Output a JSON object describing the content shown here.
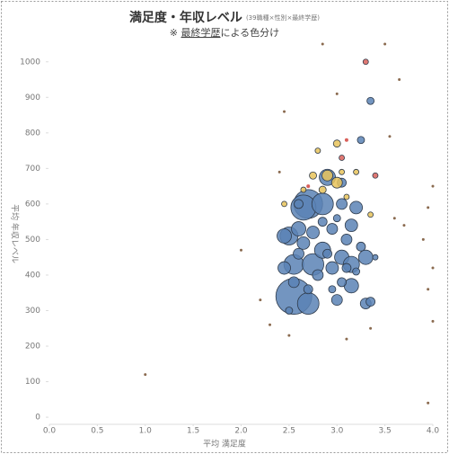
{
  "chart_data": {
    "type": "scatter",
    "title": "満足度・年収レベル",
    "title_note": "(39職種×性別×最終学歴)",
    "subtitle_prefix": "※ ",
    "subtitle_link": "最終学歴",
    "subtitle_suffix": "による色分け",
    "xlabel": "平均 満足度",
    "ylabel": "平均 年収レベル",
    "xlim": [
      0,
      4
    ],
    "ylim": [
      -20,
      1050
    ],
    "xticks": [
      {
        "value": 0,
        "label": "0.0"
      },
      0.5,
      {
        "value": 1,
        "label": "1.0"
      },
      1.5,
      {
        "value": 2,
        "label": "2.0"
      },
      2.5,
      {
        "value": 3,
        "label": "3.0"
      },
      3.5,
      {
        "value": 4,
        "label": "4.0"
      }
    ],
    "yticks": [
      0,
      100,
      200,
      300,
      400,
      500,
      600,
      700,
      800,
      900,
      1000
    ],
    "series": [
      {
        "color": "#5b83b5",
        "x": [
          2.55,
          2.7,
          2.7,
          2.65,
          2.85,
          2.9,
          2.5,
          2.55,
          2.75,
          2.85,
          3.05,
          3.15,
          3.3,
          3.15,
          3.3,
          3.35,
          3.15,
          3.2,
          3.05,
          2.95,
          3.0,
          2.95,
          2.6,
          2.45,
          2.45,
          2.65,
          2.75,
          2.8,
          2.6,
          3.1,
          3.25,
          3.35,
          3.25,
          3.05,
          2.6,
          2.55,
          2.5,
          2.95,
          3.05,
          2.85,
          3.1,
          2.9,
          3.2,
          2.7,
          3.0,
          3.4
        ],
        "values": [
          340,
          320,
          600,
          590,
          600,
          675,
          510,
          430,
          430,
          470,
          450,
          430,
          450,
          370,
          320,
          325,
          540,
          590,
          600,
          530,
          330,
          420,
          530,
          420,
          510,
          490,
          520,
          400,
          460,
          500,
          480,
          890,
          780,
          660,
          600,
          380,
          300,
          360,
          380,
          550,
          420,
          460,
          410,
          360,
          560,
          450
        ],
        "sizes": [
          20,
          12,
          16,
          14,
          12,
          9,
          10,
          11,
          12,
          9,
          8,
          9,
          8,
          8,
          6,
          5,
          7,
          7,
          6,
          6,
          6,
          7,
          8,
          7,
          8,
          7,
          7,
          6,
          6,
          6,
          5,
          4,
          4,
          5,
          5,
          6,
          4,
          4,
          5,
          5,
          5,
          5,
          4,
          5,
          4,
          3
        ]
      },
      {
        "color": "#e8c35a",
        "x": [
          2.9,
          3.0,
          3.0,
          2.75,
          2.85,
          3.05,
          2.45,
          3.35,
          2.8,
          3.1,
          2.65,
          3.2
        ],
        "values": [
          680,
          660,
          770,
          680,
          640,
          690,
          600,
          570,
          750,
          620,
          640,
          690
        ],
        "sizes": [
          6,
          6,
          4,
          4,
          4,
          3,
          3,
          3,
          3,
          3,
          3,
          3
        ]
      },
      {
        "color": "#d9605a",
        "x": [
          3.3,
          3.4,
          3.05,
          2.7,
          3.1
        ],
        "values": [
          1000,
          680,
          730,
          650,
          780
        ],
        "sizes": [
          3,
          3,
          3,
          2,
          2
        ]
      },
      {
        "color": "#8a6a4f",
        "x": [
          1.0,
          2.0,
          3.5,
          4.0,
          3.95,
          4.0,
          3.95,
          3.95,
          3.6,
          3.65,
          2.5,
          2.4,
          2.3,
          3.1,
          3.7,
          2.85,
          3.0,
          3.55,
          3.35,
          2.2,
          3.9,
          2.45,
          4.0
        ],
        "values": [
          120,
          470,
          1050,
          650,
          590,
          420,
          360,
          40,
          560,
          950,
          230,
          690,
          260,
          220,
          540,
          1050,
          910,
          790,
          250,
          330,
          500,
          860,
          270
        ],
        "sizes": [
          1.5,
          1.5,
          1.5,
          1.5,
          1.5,
          1.5,
          1.5,
          1.5,
          1.5,
          1.5,
          1.5,
          1.5,
          1.5,
          1.5,
          1.5,
          1.5,
          1.5,
          1.5,
          1.5,
          1.5,
          1.5,
          1.5,
          1.5
        ]
      }
    ]
  }
}
